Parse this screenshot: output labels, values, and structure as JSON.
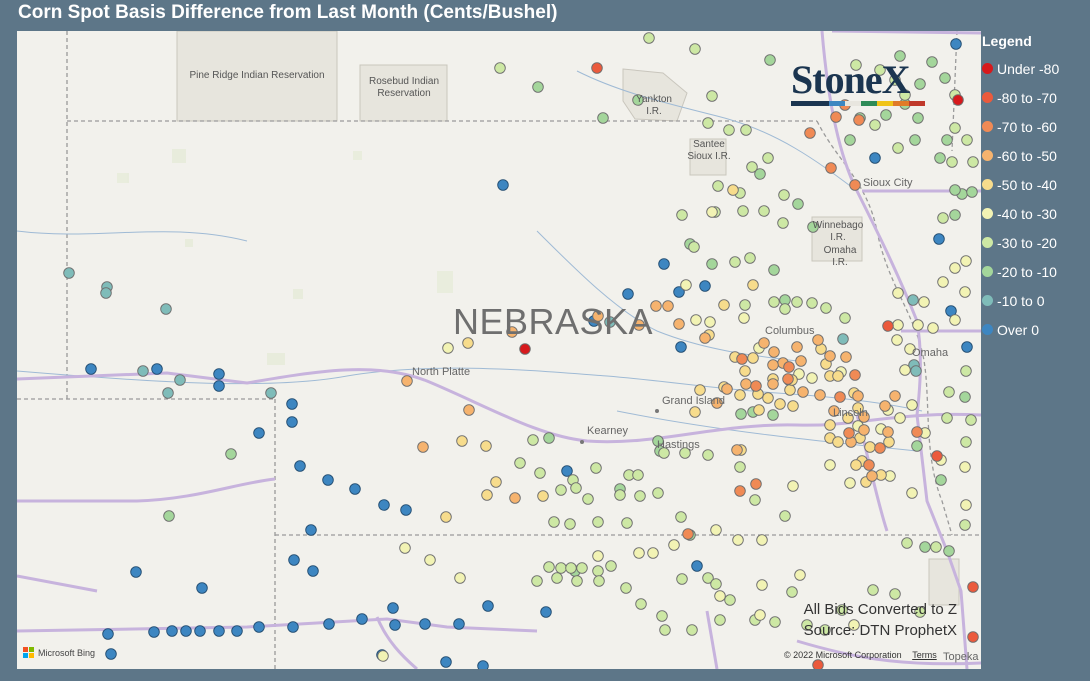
{
  "title": "Corn Spot Basis Difference from Last Month (Cents/Bushel)",
  "legend": {
    "title": "Legend",
    "items": [
      {
        "key": "under80",
        "label": "Under -80",
        "color": "#d7191c"
      },
      {
        "key": "m80",
        "label": "-80 to -70",
        "color": "#eb5a3c"
      },
      {
        "key": "m70",
        "label": "-70 to -60",
        "color": "#f08a55"
      },
      {
        "key": "m60",
        "label": "-60 to -50",
        "color": "#f6b36e"
      },
      {
        "key": "m50",
        "label": "-50 to -40",
        "color": "#f7dc8c"
      },
      {
        "key": "m40",
        "label": "-40 to -30",
        "color": "#f2f3b4"
      },
      {
        "key": "m30",
        "label": "-30 to -20",
        "color": "#cde8a4"
      },
      {
        "key": "m20",
        "label": "-20 to -10",
        "color": "#a4d69b"
      },
      {
        "key": "m10",
        "label": "-10 to 0",
        "color": "#7fbcb9"
      },
      {
        "key": "over0",
        "label": "Over 0",
        "color": "#3d86c1"
      }
    ]
  },
  "map": {
    "state": "NEBRASKA",
    "places": [
      {
        "name": "North Platte"
      },
      {
        "name": "Kearney"
      },
      {
        "name": "Grand Island"
      },
      {
        "name": "Hastings"
      },
      {
        "name": "Columbus"
      },
      {
        "name": "Omaha"
      },
      {
        "name": "Lincoln"
      },
      {
        "name": "Sioux City"
      },
      {
        "name": "Topeka"
      }
    ],
    "reservations": [
      {
        "name": "Pine Ridge Indian Reservation"
      },
      {
        "name": "Rosebud Indian Reservation"
      },
      {
        "name": "Yankton I.R."
      },
      {
        "name": "Santee Sioux I.R."
      },
      {
        "name": "Winnebago I.R."
      },
      {
        "name": "Omaha I.R."
      }
    ]
  },
  "source": {
    "line1": "All Bids Converted to Z",
    "line2": "Source: DTN ProphetX"
  },
  "attribution": {
    "provider": "Microsoft Bing",
    "copyright": "© 2022 Microsoft Corporation",
    "terms": "Terms"
  },
  "logo": {
    "text": "StoneX",
    "colors": [
      "#1b3550",
      "#3d86c1",
      "#e8e6df",
      "#2e8b57",
      "#f0c419",
      "#e07b29",
      "#c0392b"
    ]
  }
}
